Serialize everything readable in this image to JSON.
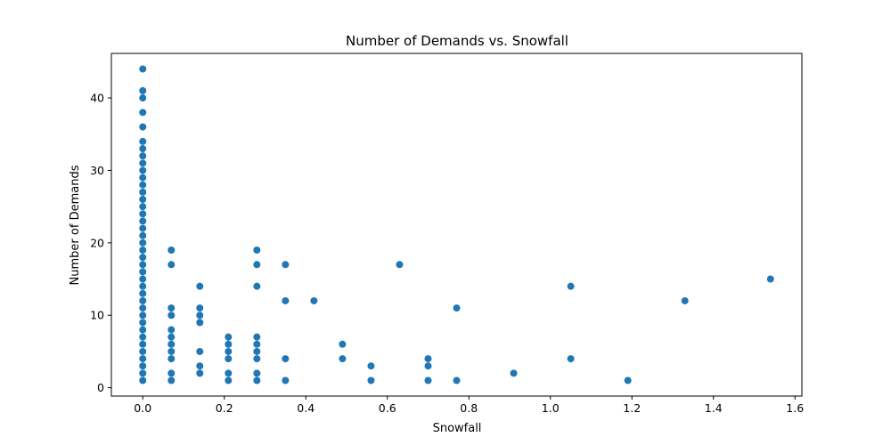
{
  "chart_data": {
    "type": "scatter",
    "title": "Number of Demands vs. Snowfall",
    "xlabel": "Snowfall",
    "ylabel": "Number of Demands",
    "xlim": [
      -0.077,
      1.617
    ],
    "ylim": [
      -1.15,
      46.15
    ],
    "xticks": [
      0.0,
      0.2,
      0.4,
      0.6,
      0.8,
      1.0,
      1.2,
      1.4,
      1.6
    ],
    "xtick_labels": [
      "0.0",
      "0.2",
      "0.4",
      "0.6",
      "0.8",
      "1.0",
      "1.2",
      "1.4",
      "1.6"
    ],
    "yticks": [
      0,
      10,
      20,
      30,
      40
    ],
    "ytick_labels": [
      "0",
      "10",
      "20",
      "30",
      "40"
    ],
    "grid": false,
    "marker_color": "#1f77b4",
    "points": [
      [
        0,
        1
      ],
      [
        0,
        2
      ],
      [
        0,
        3
      ],
      [
        0,
        4
      ],
      [
        0,
        5
      ],
      [
        0,
        6
      ],
      [
        0,
        7
      ],
      [
        0,
        8
      ],
      [
        0,
        9
      ],
      [
        0,
        10
      ],
      [
        0,
        11
      ],
      [
        0,
        12
      ],
      [
        0,
        13
      ],
      [
        0,
        14
      ],
      [
        0,
        15
      ],
      [
        0,
        16
      ],
      [
        0,
        17
      ],
      [
        0,
        18
      ],
      [
        0,
        19
      ],
      [
        0,
        20
      ],
      [
        0,
        21
      ],
      [
        0,
        22
      ],
      [
        0,
        23
      ],
      [
        0,
        24
      ],
      [
        0,
        25
      ],
      [
        0,
        26
      ],
      [
        0,
        27
      ],
      [
        0,
        28
      ],
      [
        0,
        29
      ],
      [
        0,
        30
      ],
      [
        0,
        31
      ],
      [
        0,
        32
      ],
      [
        0,
        33
      ],
      [
        0,
        34
      ],
      [
        0,
        36
      ],
      [
        0,
        38
      ],
      [
        0,
        40
      ],
      [
        0,
        41
      ],
      [
        0,
        44
      ],
      [
        0.07,
        1
      ],
      [
        0.07,
        2
      ],
      [
        0.07,
        4
      ],
      [
        0.07,
        5
      ],
      [
        0.07,
        6
      ],
      [
        0.07,
        7
      ],
      [
        0.07,
        8
      ],
      [
        0.07,
        10
      ],
      [
        0.07,
        11
      ],
      [
        0.07,
        17
      ],
      [
        0.07,
        19
      ],
      [
        0.14,
        2
      ],
      [
        0.14,
        3
      ],
      [
        0.14,
        5
      ],
      [
        0.14,
        9
      ],
      [
        0.14,
        10
      ],
      [
        0.14,
        11
      ],
      [
        0.14,
        14
      ],
      [
        0.21,
        1
      ],
      [
        0.21,
        2
      ],
      [
        0.21,
        4
      ],
      [
        0.21,
        5
      ],
      [
        0.21,
        6
      ],
      [
        0.21,
        7
      ],
      [
        0.28,
        1
      ],
      [
        0.28,
        2
      ],
      [
        0.28,
        4
      ],
      [
        0.28,
        5
      ],
      [
        0.28,
        6
      ],
      [
        0.28,
        7
      ],
      [
        0.28,
        14
      ],
      [
        0.28,
        17
      ],
      [
        0.28,
        19
      ],
      [
        0.35,
        1
      ],
      [
        0.35,
        4
      ],
      [
        0.35,
        12
      ],
      [
        0.35,
        17
      ],
      [
        0.42,
        12
      ],
      [
        0.49,
        4
      ],
      [
        0.49,
        6
      ],
      [
        0.56,
        1
      ],
      [
        0.56,
        3
      ],
      [
        0.63,
        17
      ],
      [
        0.7,
        1
      ],
      [
        0.7,
        3
      ],
      [
        0.7,
        4
      ],
      [
        0.77,
        1
      ],
      [
        0.77,
        11
      ],
      [
        0.91,
        2
      ],
      [
        1.05,
        4
      ],
      [
        1.05,
        14
      ],
      [
        1.19,
        1
      ],
      [
        1.33,
        12
      ],
      [
        1.54,
        15
      ]
    ]
  }
}
